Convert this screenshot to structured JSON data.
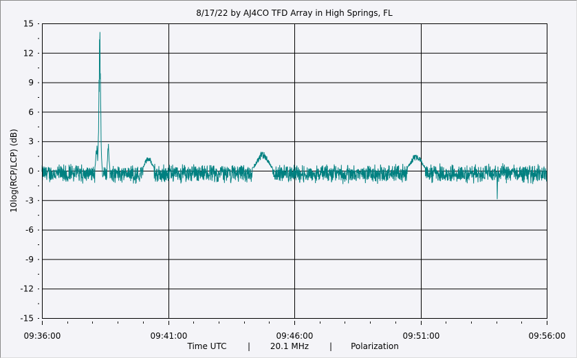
{
  "chart_data": {
    "type": "line",
    "title": "8/17/22  by  AJ4CO TFD Array  in  High Springs, FL",
    "ylabel": "10log(RCP/LCP) (dB)",
    "xlabel_parts": [
      "Time UTC",
      "|",
      "20.1 MHz",
      "|",
      "Polarization"
    ],
    "ylim": [
      -15,
      15
    ],
    "yticks": [
      15,
      12,
      9,
      6,
      3,
      0,
      -3,
      -6,
      -9,
      -12,
      -15
    ],
    "xlim_minutes": [
      0,
      20
    ],
    "xticks": [
      {
        "min": 0,
        "label": "09:36:00"
      },
      {
        "min": 5,
        "label": "09:41:00"
      },
      {
        "min": 10,
        "label": "09:46:00"
      },
      {
        "min": 15,
        "label": "09:51:00"
      },
      {
        "min": 20,
        "label": "09:56:00"
      }
    ],
    "grid": true,
    "series_color": "#008080",
    "baseline_db": -0.3,
    "noise_amplitude_db": 0.9,
    "features": [
      {
        "min": 2.29,
        "db": 15.0,
        "width_min": 0.05
      },
      {
        "min": 2.17,
        "db": 2.7,
        "width_min": 0.05
      },
      {
        "min": 2.63,
        "db": 2.8,
        "width_min": 0.04
      },
      {
        "min": 4.22,
        "db": 1.5,
        "width_min": 0.2
      },
      {
        "min": 8.75,
        "db": 2.0,
        "width_min": 0.3
      },
      {
        "min": 14.83,
        "db": 1.8,
        "width_min": 0.3
      },
      {
        "min": 18.04,
        "db": -3.0,
        "width_min": 0.01
      }
    ]
  }
}
